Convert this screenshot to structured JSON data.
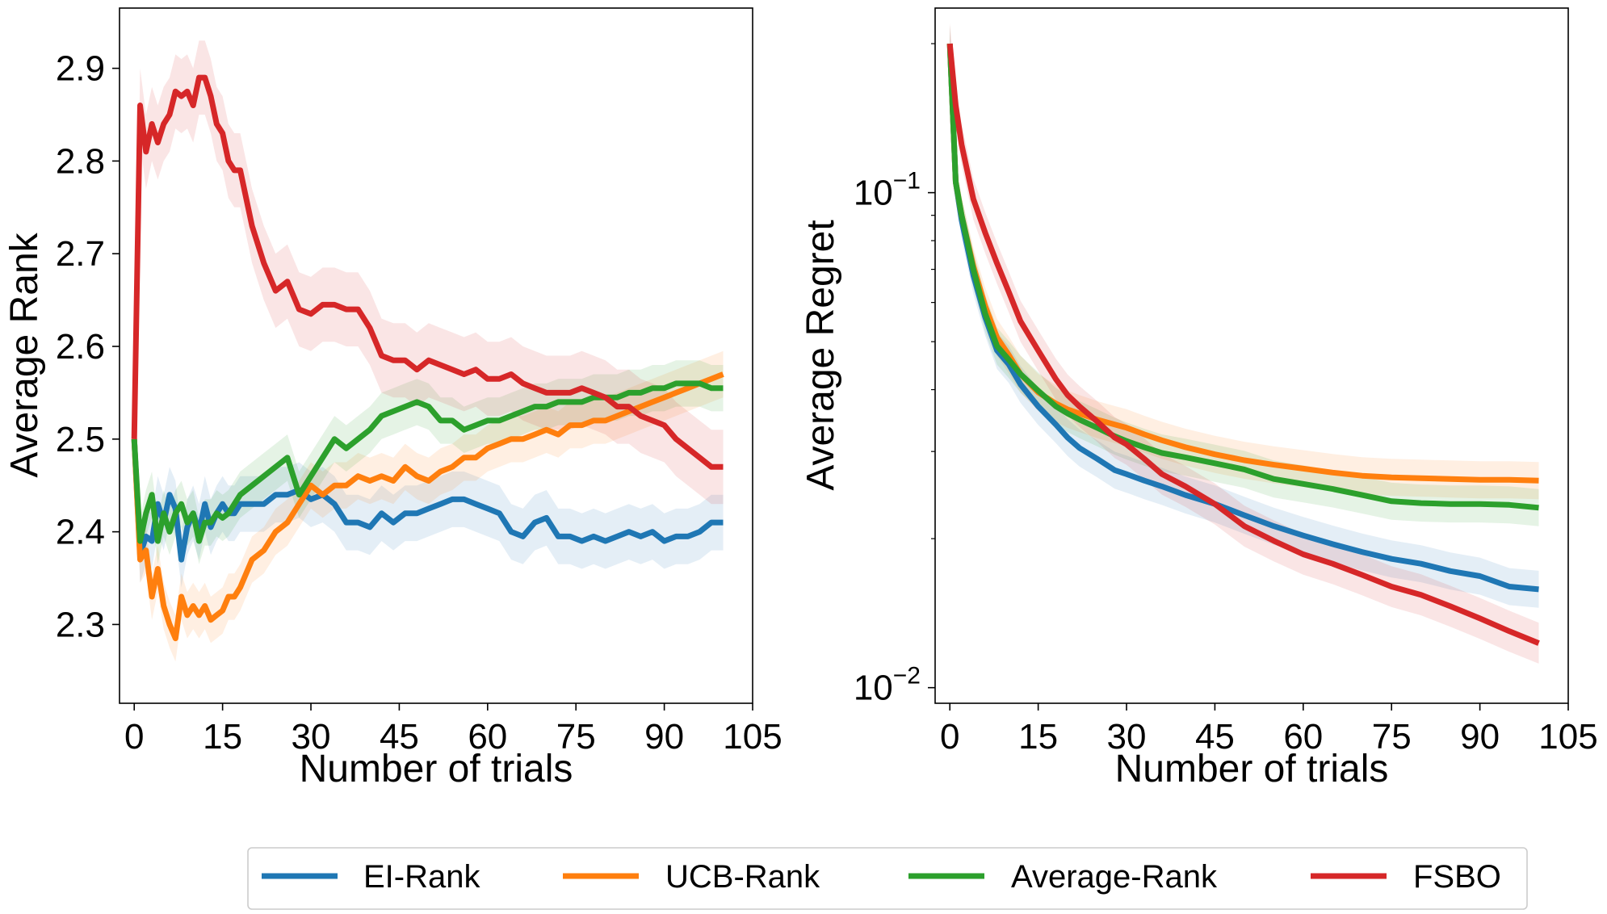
{
  "legend": {
    "items": [
      {
        "label": "EI-Rank",
        "color": "#1f77b4"
      },
      {
        "label": "UCB-Rank",
        "color": "#ff7f0e"
      },
      {
        "label": "Average-Rank",
        "color": "#2ca02c"
      },
      {
        "label": "FSBO",
        "color": "#d62728"
      }
    ]
  },
  "chart_data": [
    {
      "type": "line",
      "title": "",
      "xlabel": "Number of trials",
      "ylabel": "Average Rank",
      "xlim": [
        -2.5,
        105
      ],
      "ylim": [
        2.215,
        2.965
      ],
      "xticks": [
        0,
        15,
        30,
        45,
        60,
        75,
        90,
        105
      ],
      "xtick_labels": [
        "0",
        "15",
        "30",
        "45",
        "60",
        "75",
        "90",
        "105"
      ],
      "yticks": [
        2.3,
        2.4,
        2.5,
        2.6,
        2.7,
        2.8,
        2.9
      ],
      "ytick_labels": [
        "2.3",
        "2.4",
        "2.5",
        "2.6",
        "2.7",
        "2.8",
        "2.9"
      ],
      "grid": false,
      "shaded_band": true,
      "series": [
        {
          "name": "EI-Rank",
          "color": "#1f77b4",
          "band": 0.03,
          "x": [
            0,
            1,
            2,
            3,
            4,
            5,
            6,
            7,
            8,
            9,
            10,
            11,
            12,
            13,
            14,
            15,
            16,
            17,
            18,
            20,
            22,
            24,
            26,
            28,
            30,
            32,
            34,
            36,
            38,
            40,
            42,
            44,
            46,
            48,
            50,
            52,
            54,
            56,
            58,
            60,
            62,
            64,
            66,
            68,
            70,
            72,
            74,
            76,
            78,
            80,
            82,
            84,
            86,
            88,
            90,
            92,
            94,
            96,
            98,
            100
          ],
          "y": [
            2.5,
            2.375,
            2.395,
            2.39,
            2.43,
            2.41,
            2.44,
            2.425,
            2.37,
            2.405,
            2.42,
            2.4,
            2.43,
            2.405,
            2.42,
            2.43,
            2.42,
            2.42,
            2.43,
            2.43,
            2.43,
            2.44,
            2.44,
            2.445,
            2.435,
            2.44,
            2.43,
            2.41,
            2.41,
            2.405,
            2.42,
            2.41,
            2.42,
            2.42,
            2.425,
            2.43,
            2.435,
            2.435,
            2.43,
            2.425,
            2.42,
            2.4,
            2.395,
            2.41,
            2.415,
            2.395,
            2.395,
            2.39,
            2.395,
            2.39,
            2.395,
            2.4,
            2.395,
            2.4,
            2.39,
            2.395,
            2.395,
            2.4,
            2.41,
            2.41
          ]
        },
        {
          "name": "UCB-Rank",
          "color": "#ff7f0e",
          "band": 0.025,
          "x": [
            0,
            1,
            2,
            3,
            4,
            5,
            6,
            7,
            8,
            9,
            10,
            11,
            12,
            13,
            14,
            15,
            16,
            17,
            18,
            20,
            22,
            24,
            26,
            28,
            30,
            32,
            34,
            36,
            38,
            40,
            42,
            44,
            46,
            48,
            50,
            52,
            54,
            56,
            58,
            60,
            62,
            64,
            66,
            68,
            70,
            72,
            74,
            76,
            78,
            80,
            82,
            84,
            86,
            88,
            90,
            92,
            94,
            96,
            98,
            100
          ],
          "y": [
            2.5,
            2.37,
            2.38,
            2.33,
            2.36,
            2.32,
            2.3,
            2.285,
            2.33,
            2.31,
            2.32,
            2.31,
            2.32,
            2.305,
            2.31,
            2.315,
            2.33,
            2.33,
            2.34,
            2.37,
            2.38,
            2.4,
            2.41,
            2.43,
            2.45,
            2.44,
            2.45,
            2.45,
            2.46,
            2.455,
            2.46,
            2.455,
            2.47,
            2.46,
            2.455,
            2.465,
            2.47,
            2.48,
            2.48,
            2.49,
            2.495,
            2.5,
            2.5,
            2.505,
            2.51,
            2.505,
            2.515,
            2.515,
            2.52,
            2.52,
            2.525,
            2.53,
            2.535,
            2.54,
            2.545,
            2.55,
            2.555,
            2.56,
            2.565,
            2.57
          ]
        },
        {
          "name": "Average-Rank",
          "color": "#2ca02c",
          "band": 0.025,
          "x": [
            0,
            1,
            2,
            3,
            4,
            5,
            6,
            7,
            8,
            9,
            10,
            11,
            12,
            13,
            14,
            15,
            16,
            17,
            18,
            20,
            22,
            24,
            26,
            28,
            30,
            32,
            34,
            36,
            38,
            40,
            42,
            44,
            46,
            48,
            50,
            52,
            54,
            56,
            58,
            60,
            62,
            64,
            66,
            68,
            70,
            72,
            74,
            76,
            78,
            80,
            82,
            84,
            86,
            88,
            90,
            92,
            94,
            96,
            98,
            100
          ],
          "y": [
            2.5,
            2.39,
            2.42,
            2.44,
            2.39,
            2.42,
            2.4,
            2.42,
            2.43,
            2.41,
            2.42,
            2.39,
            2.41,
            2.41,
            2.42,
            2.415,
            2.42,
            2.43,
            2.44,
            2.45,
            2.46,
            2.47,
            2.48,
            2.44,
            2.46,
            2.48,
            2.5,
            2.49,
            2.5,
            2.51,
            2.525,
            2.53,
            2.535,
            2.54,
            2.535,
            2.52,
            2.52,
            2.51,
            2.515,
            2.52,
            2.52,
            2.525,
            2.53,
            2.535,
            2.535,
            2.54,
            2.54,
            2.54,
            2.545,
            2.545,
            2.545,
            2.55,
            2.55,
            2.555,
            2.555,
            2.56,
            2.56,
            2.56,
            2.555,
            2.555
          ]
        },
        {
          "name": "FSBO",
          "color": "#d62728",
          "band": 0.04,
          "x": [
            0,
            1,
            2,
            3,
            4,
            5,
            6,
            7,
            8,
            9,
            10,
            11,
            12,
            13,
            14,
            15,
            16,
            17,
            18,
            20,
            22,
            24,
            26,
            28,
            30,
            32,
            34,
            36,
            38,
            40,
            42,
            44,
            46,
            48,
            50,
            52,
            54,
            56,
            58,
            60,
            62,
            64,
            66,
            68,
            70,
            72,
            74,
            76,
            78,
            80,
            82,
            84,
            86,
            88,
            90,
            92,
            94,
            96,
            98,
            100
          ],
          "y": [
            2.5,
            2.86,
            2.81,
            2.84,
            2.82,
            2.84,
            2.85,
            2.875,
            2.87,
            2.875,
            2.86,
            2.89,
            2.89,
            2.87,
            2.84,
            2.83,
            2.8,
            2.79,
            2.79,
            2.73,
            2.69,
            2.66,
            2.67,
            2.64,
            2.635,
            2.645,
            2.645,
            2.64,
            2.64,
            2.62,
            2.59,
            2.585,
            2.585,
            2.575,
            2.585,
            2.58,
            2.575,
            2.57,
            2.575,
            2.565,
            2.565,
            2.57,
            2.56,
            2.555,
            2.55,
            2.55,
            2.55,
            2.555,
            2.55,
            2.545,
            2.535,
            2.535,
            2.525,
            2.52,
            2.515,
            2.5,
            2.49,
            2.48,
            2.47,
            2.47
          ]
        }
      ]
    },
    {
      "type": "line",
      "title": "",
      "xlabel": "Number of trials",
      "ylabel": "Average Regret",
      "yscale": "log",
      "xlim": [
        -2.5,
        105
      ],
      "ylim": [
        0.0093,
        0.236
      ],
      "xticks": [
        0,
        15,
        30,
        45,
        60,
        75,
        90,
        105
      ],
      "xtick_labels": [
        "0",
        "15",
        "30",
        "45",
        "60",
        "75",
        "90",
        "105"
      ],
      "yticks_major": [
        0.01,
        0.1
      ],
      "ytick_labels": [
        {
          "base": "10",
          "exp": "−2"
        },
        {
          "base": "10",
          "exp": "−1"
        }
      ],
      "grid": false,
      "shaded_band": true,
      "series": [
        {
          "name": "EI-Rank",
          "color": "#1f77b4",
          "band": 0.09,
          "x": [
            0,
            1,
            2,
            4,
            6,
            8,
            10,
            12,
            15,
            18,
            20,
            22,
            25,
            28,
            30,
            33,
            36,
            40,
            45,
            50,
            55,
            60,
            65,
            70,
            75,
            80,
            85,
            90,
            95,
            100
          ],
          "y": [
            0.2,
            0.105,
            0.088,
            0.068,
            0.056,
            0.048,
            0.045,
            0.041,
            0.037,
            0.034,
            0.032,
            0.0305,
            0.029,
            0.0275,
            0.027,
            0.0262,
            0.0255,
            0.0245,
            0.0235,
            0.0223,
            0.0212,
            0.0203,
            0.0195,
            0.0188,
            0.0182,
            0.0178,
            0.0172,
            0.0168,
            0.016,
            0.0158
          ]
        },
        {
          "name": "UCB-Rank",
          "color": "#ff7f0e",
          "band": 0.09,
          "x": [
            0,
            1,
            2,
            4,
            6,
            8,
            10,
            12,
            15,
            18,
            20,
            22,
            25,
            28,
            30,
            33,
            36,
            40,
            45,
            50,
            55,
            60,
            65,
            70,
            75,
            80,
            85,
            90,
            95,
            100
          ],
          "y": [
            0.2,
            0.105,
            0.09,
            0.071,
            0.059,
            0.051,
            0.047,
            0.043,
            0.0395,
            0.0375,
            0.0365,
            0.0358,
            0.0348,
            0.034,
            0.0335,
            0.0325,
            0.0316,
            0.0306,
            0.0296,
            0.0288,
            0.0282,
            0.0277,
            0.0272,
            0.0268,
            0.0266,
            0.0265,
            0.0264,
            0.0263,
            0.0263,
            0.0262
          ]
        },
        {
          "name": "Average-Rank",
          "color": "#2ca02c",
          "band": 0.09,
          "x": [
            0,
            1,
            2,
            4,
            6,
            8,
            10,
            12,
            15,
            18,
            20,
            22,
            25,
            28,
            30,
            33,
            36,
            40,
            45,
            50,
            55,
            60,
            65,
            70,
            75,
            80,
            85,
            90,
            95,
            100
          ],
          "y": [
            0.2,
            0.105,
            0.09,
            0.07,
            0.057,
            0.049,
            0.046,
            0.043,
            0.0398,
            0.037,
            0.0358,
            0.0348,
            0.0335,
            0.0322,
            0.0315,
            0.0306,
            0.0298,
            0.0292,
            0.0284,
            0.0276,
            0.0264,
            0.0258,
            0.0252,
            0.0245,
            0.0238,
            0.0236,
            0.0235,
            0.0235,
            0.0234,
            0.0231
          ]
        },
        {
          "name": "FSBO",
          "color": "#d62728",
          "band": 0.1,
          "x": [
            0,
            1,
            2,
            4,
            6,
            8,
            10,
            12,
            15,
            18,
            20,
            22,
            25,
            28,
            30,
            33,
            36,
            40,
            45,
            50,
            55,
            60,
            65,
            70,
            75,
            80,
            85,
            90,
            95,
            100
          ],
          "y": [
            0.2,
            0.15,
            0.125,
            0.097,
            0.083,
            0.072,
            0.063,
            0.055,
            0.048,
            0.042,
            0.039,
            0.037,
            0.0345,
            0.032,
            0.031,
            0.029,
            0.027,
            0.0255,
            0.0235,
            0.0212,
            0.0198,
            0.0186,
            0.0178,
            0.0169,
            0.016,
            0.0154,
            0.0146,
            0.0138,
            0.013,
            0.0123
          ]
        }
      ]
    }
  ]
}
